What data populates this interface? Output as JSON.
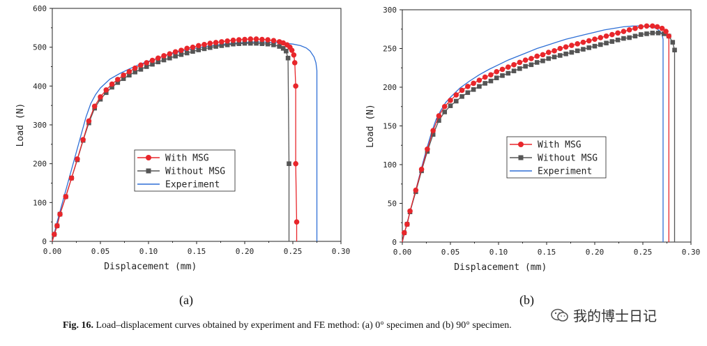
{
  "caption": {
    "label": "Fig. 16.",
    "text": " Load–displacement curves obtained by experiment and FE method: (a) 0° specimen and (b) 90° specimen."
  },
  "watermark": {
    "text": "我的博士日记",
    "icon": "wechat-icon"
  },
  "colors": {
    "with_msg": "#e8262b",
    "without_msg": "#555555",
    "experiment": "#2e6fd6",
    "axis": "#222222"
  },
  "chart_data": [
    {
      "type": "line",
      "panel_label": "(a)",
      "xlabel": "Displacement (mm)",
      "ylabel": "Load (N)",
      "xlim": [
        0,
        0.3
      ],
      "ylim": [
        0,
        600
      ],
      "xticks": [
        "0.00",
        "0.05",
        "0.10",
        "0.15",
        "0.20",
        "0.25",
        "0.30"
      ],
      "yticks": [
        "0",
        "100",
        "200",
        "300",
        "400",
        "500",
        "600"
      ],
      "legend": {
        "placement": "center",
        "entries": [
          "With MSG",
          "Without MSG",
          "Experiment"
        ]
      },
      "series": [
        {
          "name": "With MSG",
          "marker": "circle",
          "color": "#e8262b",
          "x": [
            0,
            0.002,
            0.005,
            0.008,
            0.014,
            0.02,
            0.026,
            0.032,
            0.038,
            0.044,
            0.05,
            0.056,
            0.062,
            0.068,
            0.074,
            0.08,
            0.086,
            0.092,
            0.098,
            0.104,
            0.11,
            0.116,
            0.122,
            0.128,
            0.134,
            0.14,
            0.146,
            0.152,
            0.158,
            0.164,
            0.17,
            0.176,
            0.182,
            0.188,
            0.194,
            0.2,
            0.206,
            0.212,
            0.218,
            0.224,
            0.23,
            0.236,
            0.24,
            0.244,
            0.247,
            0.249,
            0.251,
            0.252,
            0.253,
            0.253,
            0.254,
            0.254
          ],
          "y": [
            0,
            18,
            40,
            70,
            115,
            163,
            212,
            262,
            310,
            348,
            372,
            390,
            405,
            417,
            428,
            437,
            446,
            454,
            460,
            466,
            472,
            478,
            483,
            488,
            492,
            497,
            500,
            504,
            507,
            510,
            512,
            514,
            516,
            518,
            519,
            520,
            521,
            521,
            520,
            519,
            517,
            514,
            511,
            506,
            500,
            492,
            480,
            460,
            400,
            200,
            50,
            0
          ]
        },
        {
          "name": "Without MSG",
          "marker": "square",
          "color": "#555555",
          "x": [
            0,
            0.002,
            0.005,
            0.008,
            0.014,
            0.02,
            0.026,
            0.032,
            0.038,
            0.044,
            0.05,
            0.056,
            0.062,
            0.068,
            0.074,
            0.08,
            0.086,
            0.092,
            0.098,
            0.104,
            0.11,
            0.116,
            0.122,
            0.128,
            0.134,
            0.14,
            0.146,
            0.152,
            0.158,
            0.164,
            0.17,
            0.176,
            0.182,
            0.188,
            0.194,
            0.2,
            0.206,
            0.212,
            0.218,
            0.224,
            0.23,
            0.236,
            0.24,
            0.243,
            0.245,
            0.246,
            0.246
          ],
          "y": [
            0,
            18,
            40,
            70,
            115,
            163,
            210,
            260,
            305,
            343,
            366,
            383,
            397,
            409,
            419,
            428,
            436,
            443,
            450,
            456,
            462,
            467,
            472,
            477,
            481,
            485,
            489,
            493,
            496,
            499,
            502,
            504,
            506,
            508,
            509,
            510,
            510,
            510,
            509,
            508,
            506,
            502,
            497,
            490,
            472,
            200,
            0
          ]
        },
        {
          "name": "Experiment",
          "marker": "none",
          "color": "#2e6fd6",
          "x": [
            0,
            0.005,
            0.01,
            0.015,
            0.02,
            0.025,
            0.03,
            0.035,
            0.04,
            0.045,
            0.05,
            0.06,
            0.07,
            0.08,
            0.09,
            0.1,
            0.11,
            0.12,
            0.13,
            0.14,
            0.15,
            0.16,
            0.17,
            0.18,
            0.19,
            0.2,
            0.21,
            0.22,
            0.23,
            0.24,
            0.25,
            0.258,
            0.264,
            0.268,
            0.272,
            0.274,
            0.275,
            0.275
          ],
          "y": [
            0,
            50,
            95,
            140,
            185,
            230,
            275,
            320,
            355,
            378,
            395,
            418,
            432,
            444,
            455,
            464,
            472,
            480,
            487,
            493,
            498,
            502,
            505,
            508,
            510,
            512,
            513,
            513,
            512,
            511,
            508,
            504,
            498,
            490,
            475,
            460,
            440,
            0
          ]
        }
      ]
    },
    {
      "type": "line",
      "panel_label": "(b)",
      "xlabel": "Displacement (mm)",
      "ylabel": "Load (N)",
      "xlim": [
        0,
        0.3
      ],
      "ylim": [
        0,
        300
      ],
      "xticks": [
        "0.00",
        "0.05",
        "0.10",
        "0.15",
        "0.20",
        "0.25",
        "0.30"
      ],
      "yticks": [
        "0",
        "50",
        "100",
        "150",
        "200",
        "250",
        "300"
      ],
      "legend": {
        "placement": "center",
        "entries": [
          "With MSG",
          "Without MSG",
          "Experiment"
        ]
      },
      "series": [
        {
          "name": "With MSG",
          "marker": "circle",
          "color": "#e8262b",
          "x": [
            0,
            0.002,
            0.005,
            0.008,
            0.014,
            0.02,
            0.026,
            0.032,
            0.038,
            0.044,
            0.05,
            0.056,
            0.062,
            0.068,
            0.074,
            0.08,
            0.086,
            0.092,
            0.098,
            0.104,
            0.11,
            0.116,
            0.122,
            0.128,
            0.134,
            0.14,
            0.146,
            0.152,
            0.158,
            0.164,
            0.17,
            0.176,
            0.182,
            0.188,
            0.194,
            0.2,
            0.206,
            0.212,
            0.218,
            0.224,
            0.23,
            0.236,
            0.242,
            0.248,
            0.254,
            0.26,
            0.265,
            0.27,
            0.274,
            0.277,
            0.277
          ],
          "y": [
            0,
            12,
            23,
            40,
            67,
            94,
            120,
            144,
            163,
            175,
            183,
            190,
            196,
            201,
            205,
            209,
            213,
            216,
            220,
            223,
            226,
            229,
            232,
            235,
            237,
            240,
            242,
            245,
            247,
            250,
            252,
            254,
            256,
            258,
            260,
            262,
            264,
            266,
            268,
            270,
            272,
            274,
            276,
            278,
            279,
            279,
            278,
            276,
            272,
            266,
            0
          ]
        },
        {
          "name": "Without MSG",
          "marker": "square",
          "color": "#555555",
          "x": [
            0,
            0.002,
            0.005,
            0.008,
            0.014,
            0.02,
            0.026,
            0.032,
            0.038,
            0.044,
            0.05,
            0.056,
            0.062,
            0.068,
            0.074,
            0.08,
            0.086,
            0.092,
            0.098,
            0.104,
            0.11,
            0.116,
            0.122,
            0.128,
            0.134,
            0.14,
            0.146,
            0.152,
            0.158,
            0.164,
            0.17,
            0.176,
            0.182,
            0.188,
            0.194,
            0.2,
            0.206,
            0.212,
            0.218,
            0.224,
            0.23,
            0.236,
            0.242,
            0.248,
            0.254,
            0.26,
            0.266,
            0.272,
            0.277,
            0.281,
            0.283,
            0.283
          ],
          "y": [
            0,
            12,
            23,
            39,
            65,
            92,
            117,
            139,
            157,
            168,
            176,
            182,
            188,
            193,
            197,
            201,
            205,
            208,
            212,
            215,
            218,
            221,
            224,
            227,
            229,
            232,
            234,
            237,
            239,
            241,
            243,
            245,
            247,
            249,
            251,
            253,
            255,
            257,
            259,
            261,
            263,
            264,
            266,
            268,
            269,
            270,
            270,
            269,
            266,
            258,
            248,
            0
          ]
        },
        {
          "name": "Experiment",
          "marker": "none",
          "color": "#2e6fd6",
          "x": [
            0,
            0.005,
            0.01,
            0.015,
            0.02,
            0.025,
            0.03,
            0.035,
            0.04,
            0.045,
            0.05,
            0.06,
            0.07,
            0.08,
            0.09,
            0.1,
            0.11,
            0.12,
            0.13,
            0.14,
            0.15,
            0.16,
            0.17,
            0.18,
            0.19,
            0.2,
            0.21,
            0.22,
            0.23,
            0.24,
            0.25,
            0.258,
            0.264,
            0.268,
            0.27,
            0.271,
            0.271
          ],
          "y": [
            0,
            25,
            48,
            72,
            96,
            119,
            140,
            158,
            170,
            180,
            187,
            199,
            208,
            216,
            223,
            229,
            235,
            240,
            245,
            250,
            254,
            258,
            262,
            265,
            268,
            271,
            274,
            276,
            278,
            279,
            279,
            278,
            276,
            272,
            268,
            262,
            0
          ]
        }
      ]
    }
  ]
}
